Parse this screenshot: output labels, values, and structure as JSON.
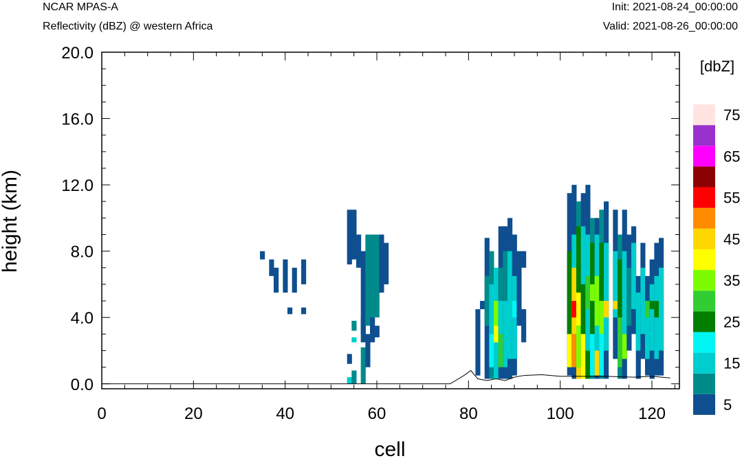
{
  "header": {
    "model": "NCAR MPAS-A",
    "field": "Reflectivity (dBZ) @ western Africa",
    "init": "Init: 2021-08-24_00:00:00",
    "valid": "Valid: 2021-08-26_00:00:00"
  },
  "chart_data": {
    "type": "heatmap",
    "title": "",
    "xlabel": "cell",
    "ylabel": "height (km)",
    "xlim": [
      0,
      126
    ],
    "ylim": [
      -0.3,
      20.0
    ],
    "x_ticks": [
      "0",
      "20",
      "40",
      "60",
      "80",
      "100",
      "120"
    ],
    "y_ticks": [
      "0.0",
      "4.0",
      "8.0",
      "12.0",
      "16.0",
      "20.0"
    ],
    "colorbar": {
      "unit_label": "[dbZ]",
      "tick_labels": [
        "5",
        "15",
        "25",
        "35",
        "45",
        "55",
        "65",
        "75"
      ],
      "levels": [
        5,
        10,
        15,
        20,
        25,
        30,
        35,
        40,
        45,
        50,
        55,
        60,
        65,
        70,
        75
      ],
      "colors": [
        "#0f4f8f",
        "#008b8b",
        "#00cdcd",
        "#00f5f5",
        "#007f00",
        "#32cd32",
        "#7cfc00",
        "#ffff00",
        "#ffd700",
        "#ff8c00",
        "#ff0000",
        "#8b0000",
        "#ff00ff",
        "#9932cc",
        "#ffe4e1"
      ]
    },
    "terrain": [
      [
        0,
        0.0
      ],
      [
        76,
        0.0
      ],
      [
        79,
        0.5
      ],
      [
        80.5,
        0.8
      ],
      [
        82,
        0.3
      ],
      [
        84,
        0.2
      ],
      [
        86,
        0.3
      ],
      [
        88,
        0.2
      ],
      [
        90,
        0.4
      ],
      [
        92,
        0.5
      ],
      [
        96,
        0.55
      ],
      [
        100,
        0.45
      ],
      [
        104,
        0.45
      ],
      [
        110,
        0.45
      ],
      [
        116,
        0.4
      ],
      [
        120,
        0.45
      ],
      [
        124,
        0.35
      ]
    ],
    "columns": [
      {
        "x": 35,
        "cells": [
          [
            7.5,
            8.0,
            5
          ]
        ]
      },
      {
        "x": 37,
        "cells": [
          [
            6.5,
            7.5,
            5
          ]
        ]
      },
      {
        "x": 38,
        "cells": [
          [
            5.5,
            7.0,
            5
          ]
        ]
      },
      {
        "x": 40,
        "cells": [
          [
            5.5,
            7.5,
            5
          ]
        ]
      },
      {
        "x": 42,
        "cells": [
          [
            5.5,
            7.0,
            5
          ]
        ]
      },
      {
        "x": 44,
        "cells": [
          [
            6.0,
            7.5,
            5
          ]
        ]
      },
      {
        "x": 41,
        "cells": [
          [
            4.2,
            4.6,
            5
          ]
        ]
      },
      {
        "x": 44,
        "cells": [
          [
            4.2,
            4.6,
            5
          ]
        ]
      },
      {
        "x": 54,
        "cells": [
          [
            7.2,
            10.5,
            5
          ],
          [
            0.0,
            0.4,
            15
          ],
          [
            1.2,
            1.8,
            5
          ]
        ]
      },
      {
        "x": 55,
        "cells": [
          [
            7.5,
            10.5,
            5
          ],
          [
            3.2,
            3.8,
            10
          ],
          [
            2.5,
            2.8,
            15
          ],
          [
            0.0,
            0.8,
            10
          ]
        ]
      },
      {
        "x": 56,
        "cells": [
          [
            7.0,
            9.0,
            5
          ]
        ]
      },
      {
        "x": 57,
        "cells": [
          [
            3.0,
            8.0,
            5
          ],
          [
            0.0,
            2.2,
            10
          ],
          [
            2.5,
            4.0,
            5
          ]
        ]
      },
      {
        "x": 58,
        "cells": [
          [
            3.5,
            9.0,
            10
          ],
          [
            1.0,
            3.0,
            5
          ]
        ]
      },
      {
        "x": 59,
        "cells": [
          [
            3.0,
            9.0,
            10
          ],
          [
            2.5,
            4.0,
            5
          ]
        ]
      },
      {
        "x": 60,
        "cells": [
          [
            4.0,
            9.0,
            10
          ],
          [
            2.8,
            3.5,
            5
          ]
        ]
      },
      {
        "x": 61,
        "cells": [
          [
            5.5,
            9.0,
            5
          ]
        ]
      },
      {
        "x": 62,
        "cells": [
          [
            6.0,
            8.5,
            5
          ]
        ]
      },
      {
        "x": 82,
        "cells": [
          [
            0.5,
            4.5,
            5
          ]
        ]
      },
      {
        "x": 83,
        "cells": [
          [
            4.5,
            5.0,
            5
          ]
        ]
      },
      {
        "x": 84,
        "cells": [
          [
            0.3,
            8.8,
            5
          ],
          [
            3.5,
            6.5,
            10
          ]
        ]
      },
      {
        "x": 85,
        "cells": [
          [
            0.3,
            8.0,
            10
          ],
          [
            3.0,
            6.0,
            15
          ],
          [
            1.0,
            3.0,
            20
          ]
        ]
      },
      {
        "x": 86,
        "cells": [
          [
            0.3,
            7.0,
            15
          ],
          [
            3.5,
            5.0,
            35
          ],
          [
            2.5,
            3.5,
            40
          ]
        ]
      },
      {
        "x": 87,
        "cells": [
          [
            0.3,
            9.5,
            5
          ],
          [
            4.0,
            7.0,
            10
          ],
          [
            2.0,
            5.0,
            15
          ],
          [
            1.0,
            3.0,
            30
          ]
        ]
      },
      {
        "x": 88,
        "cells": [
          [
            0.3,
            9.5,
            5
          ],
          [
            2.0,
            8.0,
            10
          ],
          [
            1.0,
            5.0,
            15
          ]
        ]
      },
      {
        "x": 89,
        "cells": [
          [
            0.3,
            10.0,
            5
          ],
          [
            1.5,
            8.0,
            15
          ]
        ]
      },
      {
        "x": 90,
        "cells": [
          [
            0.5,
            9.0,
            5
          ],
          [
            1.5,
            6.5,
            15
          ],
          [
            4.0,
            5.0,
            20
          ]
        ]
      },
      {
        "x": 91,
        "cells": [
          [
            3.5,
            8.0,
            5
          ]
        ]
      },
      {
        "x": 92,
        "cells": [
          [
            2.5,
            4.5,
            5
          ],
          [
            7.0,
            8.0,
            5
          ]
        ]
      },
      {
        "x": 102,
        "cells": [
          [
            0.5,
            11.5,
            5
          ],
          [
            3.0,
            8.0,
            25
          ],
          [
            1.0,
            3.0,
            40
          ]
        ]
      },
      {
        "x": 103,
        "cells": [
          [
            0.3,
            12.0,
            5
          ],
          [
            1.5,
            9.0,
            15
          ],
          [
            3.0,
            7.0,
            45
          ],
          [
            4.0,
            5.0,
            55
          ],
          [
            1.0,
            3.0,
            50
          ]
        ]
      },
      {
        "x": 104,
        "cells": [
          [
            0.3,
            11.0,
            10
          ],
          [
            5.0,
            9.5,
            25
          ],
          [
            3.5,
            5.5,
            40
          ],
          [
            1.0,
            3.5,
            35
          ],
          [
            0.3,
            1.0,
            45
          ]
        ]
      },
      {
        "x": 105,
        "cells": [
          [
            0.3,
            11.5,
            5
          ],
          [
            6.0,
            9.5,
            15
          ],
          [
            3.0,
            6.0,
            25
          ],
          [
            0.3,
            3.0,
            40
          ]
        ]
      },
      {
        "x": 106,
        "cells": [
          [
            0.3,
            12.0,
            5
          ],
          [
            2.0,
            9.0,
            15
          ],
          [
            4.5,
            6.5,
            30
          ],
          [
            0.3,
            2.0,
            25
          ]
        ]
      },
      {
        "x": 107,
        "cells": [
          [
            0.3,
            10.0,
            10
          ],
          [
            3.0,
            8.5,
            25
          ],
          [
            5.0,
            6.0,
            35
          ],
          [
            0.5,
            3.0,
            20
          ]
        ]
      },
      {
        "x": 108,
        "cells": [
          [
            0.3,
            10.0,
            5
          ],
          [
            1.0,
            9.0,
            15
          ],
          [
            3.5,
            6.5,
            35
          ],
          [
            0.5,
            2.0,
            45
          ]
        ]
      },
      {
        "x": 109,
        "cells": [
          [
            0.3,
            10.5,
            10
          ],
          [
            5.0,
            8.5,
            25
          ],
          [
            3.0,
            5.0,
            35
          ],
          [
            0.5,
            3.0,
            20
          ]
        ]
      },
      {
        "x": 110,
        "cells": [
          [
            0.3,
            11.0,
            5
          ],
          [
            2.0,
            8.5,
            15
          ],
          [
            4.0,
            5.0,
            45
          ]
        ]
      },
      {
        "x": 112,
        "cells": [
          [
            1.5,
            10.5,
            5
          ],
          [
            4.0,
            8.0,
            15
          ],
          [
            4.5,
            5.0,
            45
          ]
        ]
      },
      {
        "x": 113,
        "cells": [
          [
            0.3,
            9.0,
            10
          ],
          [
            3.0,
            7.5,
            25
          ],
          [
            1.0,
            4.0,
            30
          ]
        ]
      },
      {
        "x": 114,
        "cells": [
          [
            0.3,
            10.5,
            5
          ],
          [
            3.0,
            8.0,
            15
          ],
          [
            1.5,
            3.0,
            35
          ]
        ]
      },
      {
        "x": 115,
        "cells": [
          [
            2.0,
            9.0,
            5
          ],
          [
            3.5,
            7.0,
            10
          ]
        ]
      },
      {
        "x": 116,
        "cells": [
          [
            3.0,
            9.5,
            5
          ],
          [
            4.5,
            8.5,
            15
          ]
        ]
      },
      {
        "x": 117,
        "cells": [
          [
            0.3,
            6.5,
            5
          ],
          [
            2.0,
            5.5,
            15
          ]
        ]
      },
      {
        "x": 118,
        "cells": [
          [
            1.5,
            8.5,
            5
          ],
          [
            3.0,
            7.0,
            15
          ]
        ]
      },
      {
        "x": 119,
        "cells": [
          [
            0.5,
            6.5,
            5
          ],
          [
            1.5,
            5.0,
            15
          ],
          [
            4.0,
            5.0,
            30
          ]
        ]
      },
      {
        "x": 120,
        "cells": [
          [
            0.3,
            7.5,
            5
          ],
          [
            2.0,
            6.0,
            15
          ],
          [
            4.5,
            5.0,
            25
          ]
        ]
      },
      {
        "x": 121,
        "cells": [
          [
            0.5,
            8.5,
            5
          ],
          [
            1.5,
            6.5,
            15
          ],
          [
            4.0,
            5.0,
            25
          ]
        ]
      },
      {
        "x": 122,
        "cells": [
          [
            0.5,
            8.8,
            5
          ],
          [
            2.0,
            7.0,
            15
          ]
        ]
      }
    ]
  }
}
